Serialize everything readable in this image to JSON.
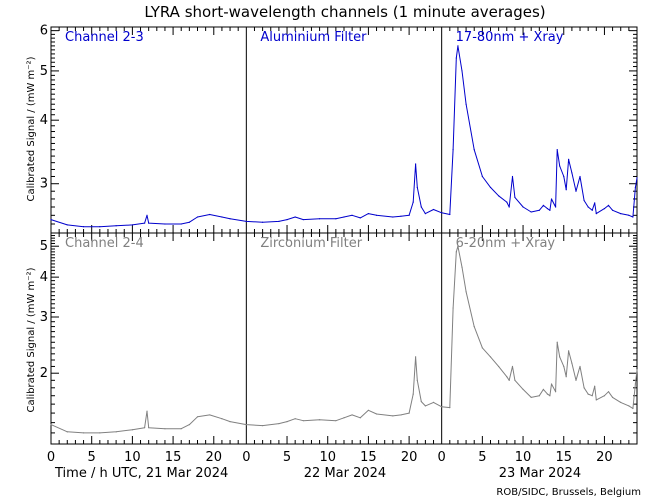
{
  "title": "LYRA short-wavelength channels (1 minute averages)",
  "ylabel": "Calibrated Signal / (mW m⁻²)",
  "xlabel_days": [
    "Time / h UTC, 21 Mar 2024",
    "22 Mar 2024",
    "23 Mar 2024"
  ],
  "credit": "ROB/SIDC, Brussels, Belgium",
  "colors": {
    "top_series": "#0000cc",
    "bottom_series": "#808080",
    "axes": "#000000"
  },
  "panel_labels_top": [
    "Channel 2-3",
    "Aluminium Filter",
    "17-80nm + Xray"
  ],
  "panel_labels_bottom": [
    "Channel 2-4",
    "Zirconium Filter",
    "6-20nm + Xray"
  ],
  "x_tick_labels": [
    "0",
    "5",
    "10",
    "15",
    "20"
  ],
  "chart_data": [
    {
      "type": "scatter",
      "row": "top",
      "yscale": "log",
      "ylim": [
        2.4,
        6.1
      ],
      "y_tick_labels": [
        "3",
        "4",
        "5",
        "6"
      ],
      "xlabel": "Time / h UTC, 21 Mar 2024",
      "xlim": [
        0,
        72
      ],
      "grid": false,
      "series": [
        {
          "color": "#0000cc",
          "points": [
            [
              0,
              2.55
            ],
            [
              2,
              2.49
            ],
            [
              4,
              2.47
            ],
            [
              6,
              2.47
            ],
            [
              8,
              2.48
            ],
            [
              10,
              2.49
            ],
            [
              11.5,
              2.51
            ],
            [
              11.8,
              2.6
            ],
            [
              12,
              2.51
            ],
            [
              14,
              2.5
            ],
            [
              16,
              2.5
            ],
            [
              17,
              2.52
            ],
            [
              18,
              2.58
            ],
            [
              19.5,
              2.61
            ],
            [
              21,
              2.58
            ],
            [
              22,
              2.56
            ],
            [
              24,
              2.53
            ],
            [
              26,
              2.52
            ],
            [
              28,
              2.53
            ],
            [
              29,
              2.55
            ],
            [
              30,
              2.58
            ],
            [
              31,
              2.55
            ],
            [
              33,
              2.56
            ],
            [
              35,
              2.56
            ],
            [
              36,
              2.58
            ],
            [
              37,
              2.6
            ],
            [
              38,
              2.57
            ],
            [
              39,
              2.62
            ],
            [
              40,
              2.6
            ],
            [
              42,
              2.58
            ],
            [
              43,
              2.59
            ],
            [
              44,
              2.6
            ],
            [
              44.5,
              2.76
            ],
            [
              44.8,
              3.28
            ],
            [
              45,
              2.95
            ],
            [
              45.5,
              2.7
            ],
            [
              46,
              2.62
            ],
            [
              47,
              2.67
            ],
            [
              48,
              2.63
            ],
            [
              49,
              2.61
            ],
            [
              49.4,
              3.5
            ],
            [
              49.8,
              5.3
            ],
            [
              50,
              5.6
            ],
            [
              50.5,
              5.0
            ],
            [
              51,
              4.3
            ],
            [
              52,
              3.5
            ],
            [
              53,
              3.1
            ],
            [
              54,
              2.95
            ],
            [
              55,
              2.84
            ],
            [
              56,
              2.76
            ],
            [
              56.3,
              2.7
            ],
            [
              56.7,
              3.1
            ],
            [
              57,
              2.82
            ],
            [
              58,
              2.7
            ],
            [
              59,
              2.64
            ],
            [
              60,
              2.66
            ],
            [
              60.5,
              2.72
            ],
            [
              61,
              2.68
            ],
            [
              61.3,
              2.66
            ],
            [
              61.5,
              2.8
            ],
            [
              62,
              2.7
            ],
            [
              62.2,
              3.5
            ],
            [
              62.5,
              3.25
            ],
            [
              63,
              3.1
            ],
            [
              63.3,
              2.92
            ],
            [
              63.6,
              3.35
            ],
            [
              64,
              3.15
            ],
            [
              64.5,
              2.9
            ],
            [
              65,
              3.1
            ],
            [
              65.5,
              2.78
            ],
            [
              66,
              2.7
            ],
            [
              66.5,
              2.66
            ],
            [
              66.8,
              2.75
            ],
            [
              67,
              2.62
            ],
            [
              68,
              2.68
            ],
            [
              68.5,
              2.72
            ],
            [
              69,
              2.66
            ],
            [
              70,
              2.62
            ],
            [
              71,
              2.6
            ],
            [
              71.5,
              2.58
            ],
            [
              71.8,
              2.95
            ],
            [
              72,
              3.08
            ]
          ]
        }
      ]
    },
    {
      "type": "scatter",
      "row": "bottom",
      "yscale": "log",
      "ylim": [
        1.2,
        5.5
      ],
      "y_tick_labels": [
        "2",
        "3",
        "4",
        "5"
      ],
      "xlabel": "Time / h UTC, 21 Mar 2024",
      "xlim": [
        0,
        72
      ],
      "grid": false,
      "series": [
        {
          "color": "#808080",
          "points": [
            [
              0,
              1.38
            ],
            [
              2,
              1.31
            ],
            [
              4,
              1.3
            ],
            [
              6,
              1.3
            ],
            [
              8,
              1.31
            ],
            [
              10,
              1.33
            ],
            [
              11.5,
              1.35
            ],
            [
              11.8,
              1.52
            ],
            [
              12,
              1.35
            ],
            [
              14,
              1.34
            ],
            [
              16,
              1.34
            ],
            [
              17,
              1.38
            ],
            [
              18,
              1.46
            ],
            [
              19.5,
              1.48
            ],
            [
              21,
              1.44
            ],
            [
              22,
              1.41
            ],
            [
              24,
              1.38
            ],
            [
              26,
              1.37
            ],
            [
              28,
              1.39
            ],
            [
              29,
              1.41
            ],
            [
              30,
              1.44
            ],
            [
              31,
              1.42
            ],
            [
              33,
              1.43
            ],
            [
              35,
              1.42
            ],
            [
              36,
              1.45
            ],
            [
              37,
              1.48
            ],
            [
              38,
              1.45
            ],
            [
              39,
              1.53
            ],
            [
              40,
              1.49
            ],
            [
              42,
              1.47
            ],
            [
              43,
              1.48
            ],
            [
              44,
              1.5
            ],
            [
              44.5,
              1.72
            ],
            [
              44.8,
              2.25
            ],
            [
              45,
              1.9
            ],
            [
              45.5,
              1.63
            ],
            [
              46,
              1.58
            ],
            [
              47,
              1.62
            ],
            [
              48,
              1.57
            ],
            [
              49,
              1.56
            ],
            [
              49.4,
              3.2
            ],
            [
              49.8,
              4.8
            ],
            [
              50,
              5.0
            ],
            [
              50.5,
              4.3
            ],
            [
              51,
              3.6
            ],
            [
              52,
              2.8
            ],
            [
              53,
              2.4
            ],
            [
              54,
              2.25
            ],
            [
              55,
              2.1
            ],
            [
              56,
              1.95
            ],
            [
              56.3,
              1.9
            ],
            [
              56.7,
              2.1
            ],
            [
              57,
              1.9
            ],
            [
              58,
              1.78
            ],
            [
              59,
              1.68
            ],
            [
              60,
              1.7
            ],
            [
              60.5,
              1.78
            ],
            [
              61,
              1.72
            ],
            [
              61.3,
              1.7
            ],
            [
              61.5,
              1.85
            ],
            [
              62,
              1.75
            ],
            [
              62.2,
              2.5
            ],
            [
              62.5,
              2.25
            ],
            [
              63,
              2.1
            ],
            [
              63.3,
              1.95
            ],
            [
              63.6,
              2.35
            ],
            [
              64,
              2.15
            ],
            [
              64.5,
              1.9
            ],
            [
              65,
              2.1
            ],
            [
              65.5,
              1.8
            ],
            [
              66,
              1.72
            ],
            [
              66.5,
              1.7
            ],
            [
              66.8,
              1.82
            ],
            [
              67,
              1.65
            ],
            [
              68,
              1.7
            ],
            [
              68.5,
              1.75
            ],
            [
              69,
              1.68
            ],
            [
              70,
              1.62
            ],
            [
              71,
              1.58
            ],
            [
              71.5,
              1.55
            ],
            [
              71.8,
              1.85
            ],
            [
              72,
              2.05
            ]
          ]
        }
      ]
    }
  ]
}
